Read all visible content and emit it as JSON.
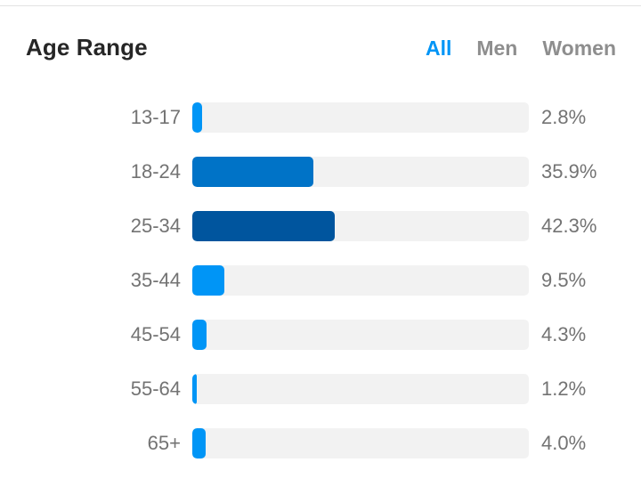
{
  "header": {
    "title": "Age Range",
    "filters": [
      {
        "label": "All",
        "active": true
      },
      {
        "label": "Men",
        "active": false
      },
      {
        "label": "Women",
        "active": false
      }
    ]
  },
  "colors": {
    "accent": "#0095f6",
    "track": "#f2f2f2",
    "bar_light": "#0095f6",
    "bar_mid": "#0073c7",
    "bar_dark": "#00559e"
  },
  "chart_data": {
    "type": "bar",
    "orientation": "horizontal",
    "categories": [
      "13-17",
      "18-24",
      "25-34",
      "35-44",
      "45-54",
      "55-64",
      "65+"
    ],
    "values": [
      2.8,
      35.9,
      42.3,
      9.5,
      4.3,
      1.2,
      4.0
    ],
    "value_labels": [
      "2.8%",
      "35.9%",
      "42.3%",
      "9.5%",
      "4.3%",
      "1.2%",
      "4.0%"
    ],
    "bar_colors": [
      "#0095f6",
      "#0073c7",
      "#00559e",
      "#0095f6",
      "#0095f6",
      "#0095f6",
      "#0095f6"
    ],
    "xlim": [
      0,
      100
    ],
    "unit": "%",
    "title": "Age Range",
    "xlabel": "",
    "ylabel": "",
    "grid": false,
    "legend": "none"
  }
}
